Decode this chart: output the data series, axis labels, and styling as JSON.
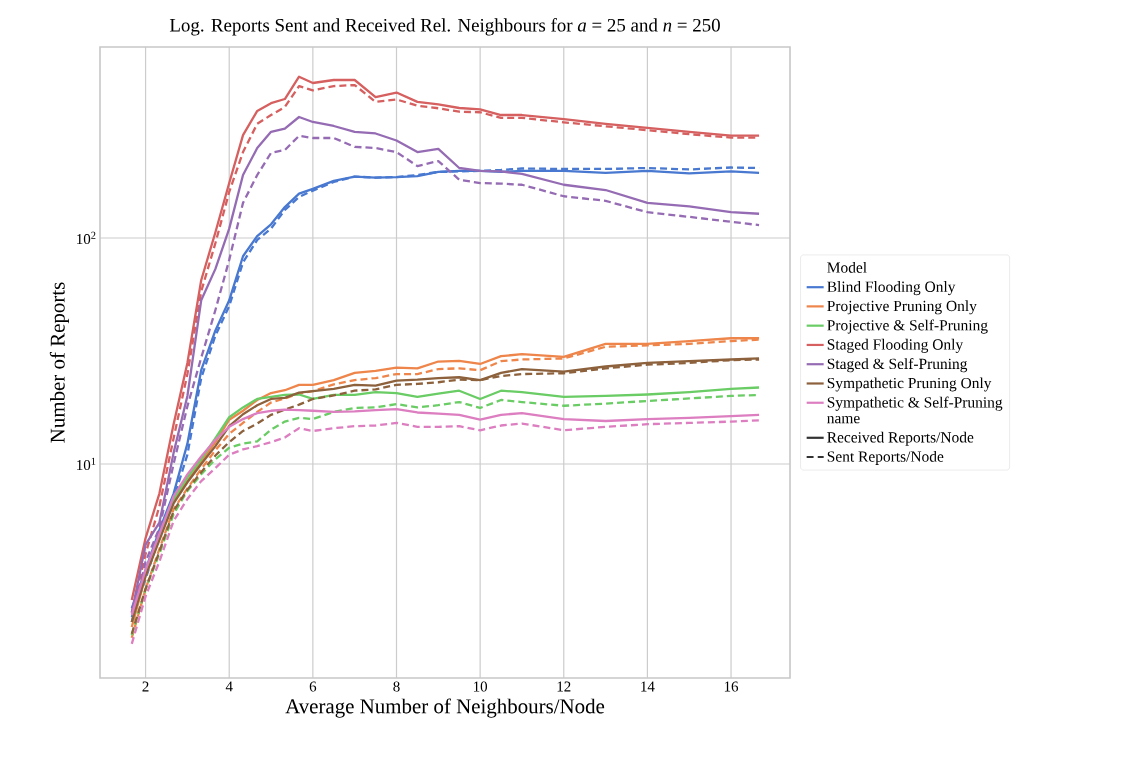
{
  "chart_data": {
    "type": "line",
    "title": "Log. Reports Sent and Received Rel. Neighbours for *a* = 25 and *n* = 250",
    "xlabel": "Average Number of Neighbours/Node",
    "ylabel": "Number of Reports",
    "legend_title": "Model",
    "annotations": [
      "name",
      "Received Reports/Node",
      "Sent Reports/Node"
    ],
    "log": "y",
    "grid": true,
    "legend": "right",
    "xlim": [
      0.91,
      17.41
    ],
    "ylim": [
      1.13,
      700
    ],
    "xticks": [
      2,
      4,
      6,
      8,
      10,
      12,
      14,
      16
    ],
    "yticks": [
      {
        "value": 10,
        "label": "10$^{1}$"
      },
      {
        "value": 100,
        "label": "10$^{2}$"
      }
    ],
    "x": [
      1.67,
      2,
      2.33,
      2.67,
      3,
      3.33,
      3.67,
      4,
      4.33,
      4.67,
      5,
      5.33,
      5.67,
      6,
      6.5,
      7,
      7.5,
      8,
      8.5,
      9,
      9.5,
      10,
      10.5,
      11,
      12,
      13,
      14,
      15,
      16,
      16.67
    ],
    "series": [
      {
        "name": "Blind Flooding Only",
        "color": "#4878d0",
        "line_style": "solid",
        "values": [
          2.3,
          3.4,
          5.1,
          7.4,
          12.3,
          26,
          39,
          53,
          83,
          102,
          115,
          137,
          157,
          165,
          179,
          187,
          185,
          186,
          188,
          196,
          198,
          198,
          196,
          198,
          198,
          194,
          198,
          193,
          197,
          194
        ]
      },
      {
        "color": "#4878d0",
        "line_style": "dashed",
        "values": [
          2.1,
          3.1,
          4.8,
          7.0,
          11,
          24,
          37,
          50,
          78,
          98,
          110,
          133,
          152,
          162,
          177,
          187,
          185,
          186,
          190,
          196,
          197,
          198,
          200,
          203,
          202,
          202,
          204,
          201,
          205,
          204
        ]
      },
      {
        "name": "Projective Pruning Only",
        "color": "#ee854a",
        "line_style": "solid",
        "values": [
          1.9,
          3.2,
          4.7,
          6.9,
          8.4,
          10.2,
          12.5,
          15.7,
          17.2,
          19.2,
          20.6,
          21.2,
          22.4,
          22.4,
          23.5,
          25.3,
          25.8,
          26.7,
          26.5,
          28.4,
          28.6,
          27.7,
          30,
          30.6,
          29.8,
          34,
          34,
          35,
          36,
          36
        ]
      },
      {
        "color": "#ee854a",
        "line_style": "dashed",
        "values": [
          1.7,
          2.8,
          4.2,
          6.3,
          7.8,
          9.5,
          11.5,
          13.6,
          15.2,
          17,
          18.7,
          19.5,
          20.5,
          21,
          22.5,
          23.5,
          24,
          25,
          25,
          26.3,
          26.5,
          26,
          28.5,
          29,
          29.3,
          33,
          33.5,
          34,
          35,
          35.5
        ]
      },
      {
        "name": "Projective & Self-Pruning",
        "color": "#6acc64",
        "line_style": "solid",
        "values": [
          2.0,
          3.3,
          4.8,
          7.0,
          8.7,
          10.5,
          13,
          16.1,
          17.8,
          19.4,
          19.8,
          20.2,
          20.3,
          19.4,
          20.2,
          20.2,
          20.8,
          20.6,
          19.8,
          20.5,
          21.1,
          19.4,
          21.1,
          20.8,
          19.8,
          20,
          20.3,
          20.8,
          21.5,
          21.8
        ]
      },
      {
        "color": "#6acc64",
        "line_style": "dashed",
        "values": [
          1.75,
          2.8,
          4.0,
          6.0,
          7.6,
          9.0,
          10.5,
          11.8,
          12.3,
          12.6,
          14.2,
          15.4,
          16,
          15.8,
          17,
          17.7,
          17.8,
          18.4,
          17.8,
          18.2,
          18.8,
          17.7,
          19.2,
          18.8,
          18.1,
          18.5,
          19,
          19.5,
          20,
          20.2
        ]
      },
      {
        "name": "Staged Flooding Only",
        "color": "#d65f5f",
        "line_style": "solid",
        "values": [
          2.5,
          4.7,
          7.4,
          15,
          28,
          65,
          106,
          175,
          285,
          365,
          395,
          412,
          517,
          485,
          500,
          500,
          420,
          440,
          400,
          390,
          376,
          371,
          350,
          350,
          336,
          320,
          307,
          295,
          284,
          284
        ]
      },
      {
        "color": "#d65f5f",
        "line_style": "dashed",
        "values": [
          2.2,
          4.0,
          6.5,
          13,
          25,
          58,
          95,
          160,
          240,
          320,
          350,
          380,
          470,
          450,
          470,
          475,
          400,
          410,
          385,
          375,
          362,
          360,
          340,
          340,
          325,
          312,
          300,
          288,
          278,
          278
        ]
      },
      {
        "name": "Staged & Self-Pruning",
        "color": "#956cb4",
        "line_style": "solid",
        "values": [
          2.2,
          4.4,
          5.5,
          11.2,
          20,
          53,
          73,
          110,
          190,
          250,
          295,
          305,
          343,
          326,
          313,
          295,
          290,
          270,
          240,
          248,
          204,
          198,
          197,
          192,
          172,
          163,
          143,
          138,
          130,
          128
        ]
      },
      {
        "color": "#956cb4",
        "line_style": "dashed",
        "values": [
          2.0,
          3.7,
          5.2,
          10,
          18,
          29.5,
          48,
          80,
          143,
          190,
          238,
          245,
          283,
          277,
          277,
          253,
          250,
          240,
          208,
          219,
          181,
          175,
          174,
          172,
          153,
          146,
          130,
          124,
          118,
          114
        ]
      },
      {
        "name": "Sympathetic Pruning Only",
        "color": "#8c613c",
        "line_style": "solid",
        "values": [
          2.0,
          3.2,
          4.6,
          6.7,
          8.3,
          10,
          12,
          14.7,
          16.6,
          18.2,
          19.4,
          19.6,
          20.7,
          21,
          21.5,
          22.4,
          22.2,
          23.4,
          23.6,
          24,
          24.2,
          23.5,
          25.3,
          26.3,
          25.6,
          27,
          28,
          28.5,
          29,
          29.3
        ]
      },
      {
        "color": "#8c613c",
        "line_style": "dashed",
        "values": [
          1.77,
          2.8,
          4.1,
          6.2,
          7.7,
          9.2,
          10.9,
          12.5,
          14,
          15.1,
          16.5,
          17.4,
          18.3,
          19.4,
          20.1,
          21.1,
          21.4,
          22.4,
          22.6,
          23,
          23.6,
          23.5,
          24.5,
          25,
          25.2,
          26.5,
          27.5,
          28,
          28.8,
          29
        ]
      },
      {
        "name": "Sympathetic & Self-Pruning",
        "color": "#dc7ec0",
        "line_style": "solid",
        "values": [
          2.15,
          3.4,
          4.9,
          7.2,
          9,
          10.8,
          12.8,
          14.6,
          15.8,
          16.8,
          17.2,
          17.4,
          17.3,
          17.2,
          17.0,
          17.1,
          17.3,
          17.5,
          16.9,
          16.7,
          16.5,
          15.7,
          16.5,
          16.8,
          15.8,
          15.5,
          15.8,
          16,
          16.3,
          16.5
        ]
      },
      {
        "color": "#dc7ec0",
        "line_style": "dashed",
        "values": [
          1.6,
          2.6,
          3.7,
          5.6,
          7.0,
          8.4,
          9.6,
          11,
          11.6,
          12.0,
          12.5,
          13.1,
          14.4,
          14,
          14.4,
          14.7,
          14.8,
          15.2,
          14.6,
          14.6,
          14.7,
          14.1,
          14.8,
          15.1,
          14.1,
          14.6,
          15,
          15.2,
          15.4,
          15.6
        ]
      }
    ]
  }
}
